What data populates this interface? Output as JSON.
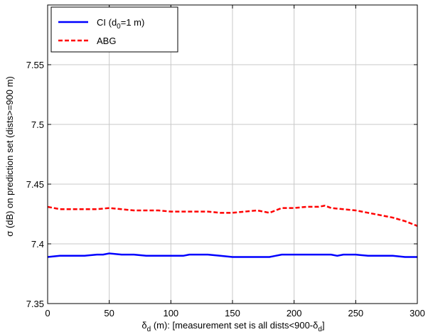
{
  "chart_data": {
    "type": "line",
    "xlim": [
      0,
      300
    ],
    "ylim": [
      7.35,
      7.6
    ],
    "xticks": [
      0,
      50,
      100,
      150,
      200,
      250,
      300
    ],
    "yticks": [
      7.35,
      7.4,
      7.45,
      7.5,
      7.55
    ],
    "xtick_labels": [
      "0",
      "50",
      "100",
      "150",
      "200",
      "250",
      "300"
    ],
    "ytick_labels": [
      "7.35",
      "7.4",
      "7.45",
      "7.5",
      "7.55"
    ],
    "grid": true,
    "legend": "top-left",
    "xlabel": {
      "delta": "δ",
      "sub": "d",
      "middle": " (m): [measurement set is all dists<900-",
      "delta2": "δ",
      "sub2": "d",
      "end": "]"
    },
    "ylabel": "σ (dB) on prediction set (dists>=900 m)",
    "series": [
      {
        "name_main": "CI (d",
        "name_sub": "0",
        "name_end": "=1 m)",
        "color": "#0000ff",
        "style": "solid",
        "x": [
          0,
          10,
          20,
          30,
          40,
          45,
          50,
          60,
          70,
          80,
          90,
          100,
          110,
          115,
          120,
          130,
          140,
          150,
          160,
          170,
          180,
          185,
          190,
          200,
          210,
          220,
          230,
          235,
          240,
          250,
          260,
          270,
          280,
          290,
          300
        ],
        "y": [
          7.389,
          7.39,
          7.39,
          7.39,
          7.391,
          7.391,
          7.392,
          7.391,
          7.391,
          7.39,
          7.39,
          7.39,
          7.39,
          7.391,
          7.391,
          7.391,
          7.39,
          7.389,
          7.389,
          7.389,
          7.389,
          7.39,
          7.391,
          7.391,
          7.391,
          7.391,
          7.391,
          7.39,
          7.391,
          7.391,
          7.39,
          7.39,
          7.39,
          7.389,
          7.389
        ]
      },
      {
        "name": "ABG",
        "color": "#ff0000",
        "style": "dashed",
        "x": [
          0,
          5,
          10,
          20,
          30,
          40,
          50,
          60,
          70,
          80,
          90,
          100,
          110,
          120,
          130,
          140,
          150,
          160,
          170,
          175,
          180,
          185,
          190,
          200,
          210,
          220,
          225,
          230,
          240,
          250,
          260,
          270,
          280,
          290,
          300
        ],
        "y": [
          7.431,
          7.43,
          7.429,
          7.429,
          7.429,
          7.429,
          7.43,
          7.429,
          7.428,
          7.428,
          7.428,
          7.427,
          7.427,
          7.427,
          7.427,
          7.426,
          7.426,
          7.427,
          7.428,
          7.427,
          7.426,
          7.428,
          7.43,
          7.43,
          7.431,
          7.431,
          7.432,
          7.43,
          7.429,
          7.428,
          7.426,
          7.424,
          7.422,
          7.419,
          7.415
        ]
      }
    ]
  }
}
